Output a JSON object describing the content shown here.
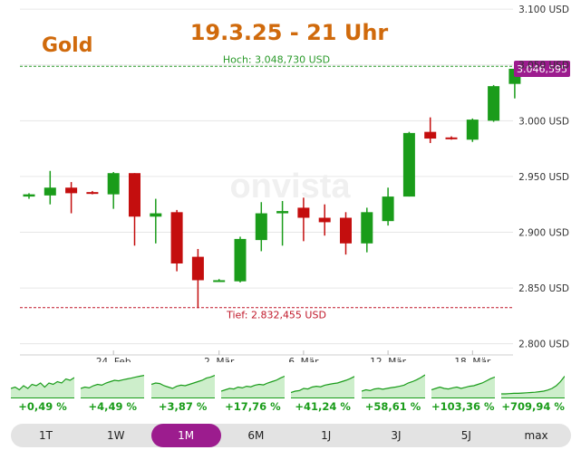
{
  "header": {
    "asset": "Gold",
    "datetime": "19.3.25 - 21 Uhr"
  },
  "watermark": "onvista",
  "chart_data": {
    "type": "candlestick",
    "title": "Gold",
    "subtitle": "19.3.25 - 21 Uhr",
    "unit": "USD",
    "ylim": [
      2790,
      3105
    ],
    "y_ticks": [
      "3.100 USD",
      "3.050 USD",
      "3.000 USD",
      "2.950 USD",
      "2.900 USD",
      "2.850 USD",
      "2.800 USD"
    ],
    "y_tick_values": [
      3100,
      3050,
      3000,
      2950,
      2900,
      2850,
      2800
    ],
    "x_ticks": [
      {
        "label": "24. Feb",
        "index": 4
      },
      {
        "label": "2. Mär",
        "index": 9
      },
      {
        "label": "6. Mär",
        "index": 13
      },
      {
        "label": "12. Mär",
        "index": 17
      },
      {
        "label": "18. Mär",
        "index": 21
      }
    ],
    "grid": true,
    "high": {
      "label": "Hoch: 3.048,730 USD",
      "value": 3048.73
    },
    "low": {
      "label": "Tief: 2.832,455 USD",
      "value": 2832.455
    },
    "last": {
      "label": "3.046,595",
      "value": 3046.595
    },
    "candles": [
      {
        "o": 2932,
        "h": 2935,
        "l": 2930,
        "c": 2934
      },
      {
        "o": 2933,
        "h": 2955,
        "l": 2925,
        "c": 2940
      },
      {
        "o": 2940,
        "h": 2945,
        "l": 2917,
        "c": 2935
      },
      {
        "o": 2936,
        "h": 2937,
        "l": 2934,
        "c": 2935
      },
      {
        "o": 2934,
        "h": 2954,
        "l": 2921,
        "c": 2953
      },
      {
        "o": 2953,
        "h": 2953,
        "l": 2888,
        "c": 2914
      },
      {
        "o": 2914,
        "h": 2930,
        "l": 2890,
        "c": 2917
      },
      {
        "o": 2918,
        "h": 2920,
        "l": 2865,
        "c": 2872
      },
      {
        "o": 2878,
        "h": 2885,
        "l": 2832,
        "c": 2857
      },
      {
        "o": 2857,
        "h": 2858,
        "l": 2856,
        "c": 2857
      },
      {
        "o": 2856,
        "h": 2896,
        "l": 2855,
        "c": 2894
      },
      {
        "o": 2893,
        "h": 2927,
        "l": 2883,
        "c": 2917
      },
      {
        "o": 2917,
        "h": 2928,
        "l": 2888,
        "c": 2919
      },
      {
        "o": 2922,
        "h": 2931,
        "l": 2892,
        "c": 2913
      },
      {
        "o": 2913,
        "h": 2925,
        "l": 2897,
        "c": 2909
      },
      {
        "o": 2913,
        "h": 2918,
        "l": 2880,
        "c": 2890
      },
      {
        "o": 2890,
        "h": 2922,
        "l": 2882,
        "c": 2918
      },
      {
        "o": 2910,
        "h": 2940,
        "l": 2906,
        "c": 2932
      },
      {
        "o": 2932,
        "h": 2990,
        "l": 2932,
        "c": 2989
      },
      {
        "o": 2990,
        "h": 3003,
        "l": 2980,
        "c": 2984
      },
      {
        "o": 2985,
        "h": 2986,
        "l": 2983,
        "c": 2984
      },
      {
        "o": 2983,
        "h": 3002,
        "l": 2981,
        "c": 3001
      },
      {
        "o": 3000,
        "h": 3032,
        "l": 2999,
        "c": 3031
      },
      {
        "o": 3033,
        "h": 3047,
        "l": 3020,
        "c": 3046.595
      }
    ]
  },
  "colors": {
    "up": "#1a9c1a",
    "down": "#c40e0e",
    "accent": "#9c1c8e",
    "title": "#d06a0c",
    "high_line": "#2a9a2a",
    "low_line": "#c0182a"
  },
  "ranges": [
    {
      "label": "1T",
      "change": "+0,49 %",
      "spark": [
        0.3,
        0.35,
        0.25,
        0.4,
        0.3,
        0.45,
        0.4,
        0.5,
        0.35,
        0.5,
        0.45,
        0.55,
        0.5,
        0.65,
        0.6,
        0.7
      ]
    },
    {
      "label": "1W",
      "change": "+4,49 %",
      "spark": [
        0.3,
        0.35,
        0.32,
        0.4,
        0.45,
        0.42,
        0.5,
        0.55,
        0.6,
        0.58,
        0.62,
        0.65,
        0.68,
        0.72,
        0.75,
        0.78
      ]
    },
    {
      "label": "1M",
      "change": "+3,87 %",
      "spark": [
        0.45,
        0.5,
        0.48,
        0.4,
        0.35,
        0.3,
        0.38,
        0.42,
        0.4,
        0.45,
        0.5,
        0.55,
        0.6,
        0.68,
        0.72,
        0.78
      ]
    },
    {
      "label": "6M",
      "change": "+17,76 %",
      "spark": [
        0.2,
        0.25,
        0.3,
        0.28,
        0.35,
        0.32,
        0.38,
        0.36,
        0.42,
        0.45,
        0.43,
        0.5,
        0.55,
        0.6,
        0.68,
        0.75
      ]
    },
    {
      "label": "1J",
      "change": "+41,24 %",
      "spark": [
        0.15,
        0.2,
        0.22,
        0.3,
        0.28,
        0.35,
        0.38,
        0.36,
        0.42,
        0.45,
        0.48,
        0.5,
        0.55,
        0.6,
        0.66,
        0.74
      ]
    },
    {
      "label": "3J",
      "change": "+58,61 %",
      "spark": [
        0.2,
        0.25,
        0.22,
        0.28,
        0.3,
        0.27,
        0.3,
        0.33,
        0.35,
        0.38,
        0.42,
        0.5,
        0.55,
        0.62,
        0.7,
        0.8
      ]
    },
    {
      "label": "5J",
      "change": "+103,36 %",
      "spark": [
        0.25,
        0.3,
        0.35,
        0.3,
        0.28,
        0.32,
        0.35,
        0.3,
        0.34,
        0.38,
        0.4,
        0.45,
        0.5,
        0.58,
        0.66,
        0.72
      ]
    },
    {
      "label": "max",
      "change": "+709,94 %",
      "spark": [
        0.1,
        0.1,
        0.11,
        0.12,
        0.12,
        0.13,
        0.14,
        0.15,
        0.16,
        0.18,
        0.2,
        0.24,
        0.3,
        0.4,
        0.55,
        0.75
      ]
    }
  ],
  "active_range": "1M"
}
